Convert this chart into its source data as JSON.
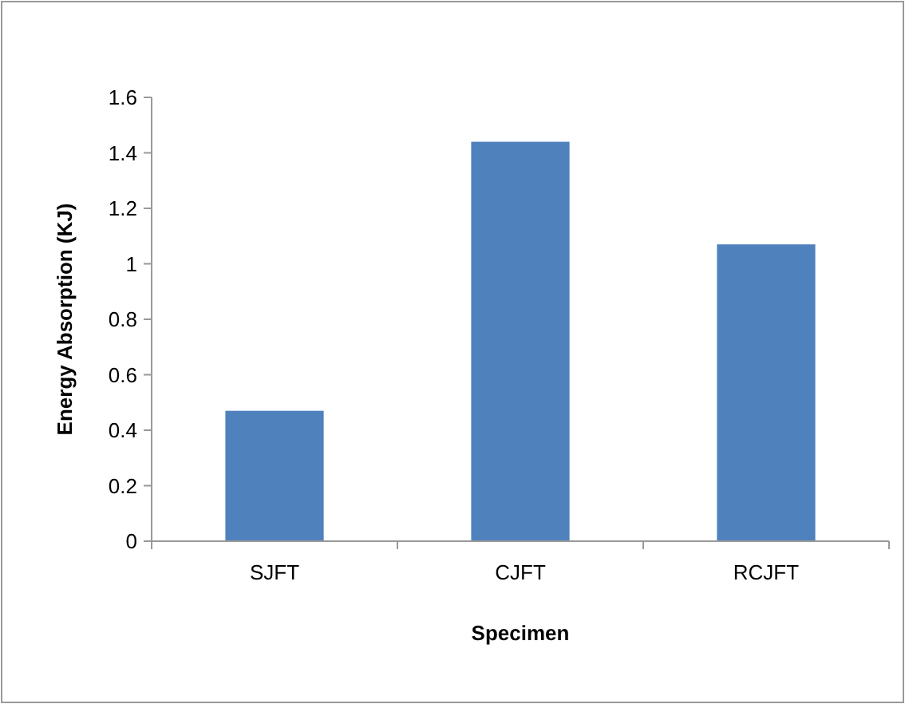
{
  "chart_data": {
    "type": "bar",
    "xlabel": "Specimen",
    "ylabel": "Energy Absorption (KJ)",
    "categories": [
      "SJFT",
      "CJFT",
      "RCJFT"
    ],
    "values": [
      0.47,
      1.44,
      1.07
    ],
    "color": "#4f81bd",
    "ylim": [
      0,
      1.6
    ],
    "yticks": [
      0,
      {
        "value": 0.2,
        "label": "0.2"
      },
      {
        "value": 0.4,
        "label": "0.4"
      },
      {
        "value": 0.6,
        "label": "0.6"
      },
      {
        "value": 0.8,
        "label": "0.8"
      },
      1,
      {
        "value": 1.2,
        "label": "1.2"
      },
      {
        "value": 1.4,
        "label": "1.4"
      },
      {
        "value": 1.6,
        "label": "1.6"
      }
    ],
    "grid": false
  }
}
